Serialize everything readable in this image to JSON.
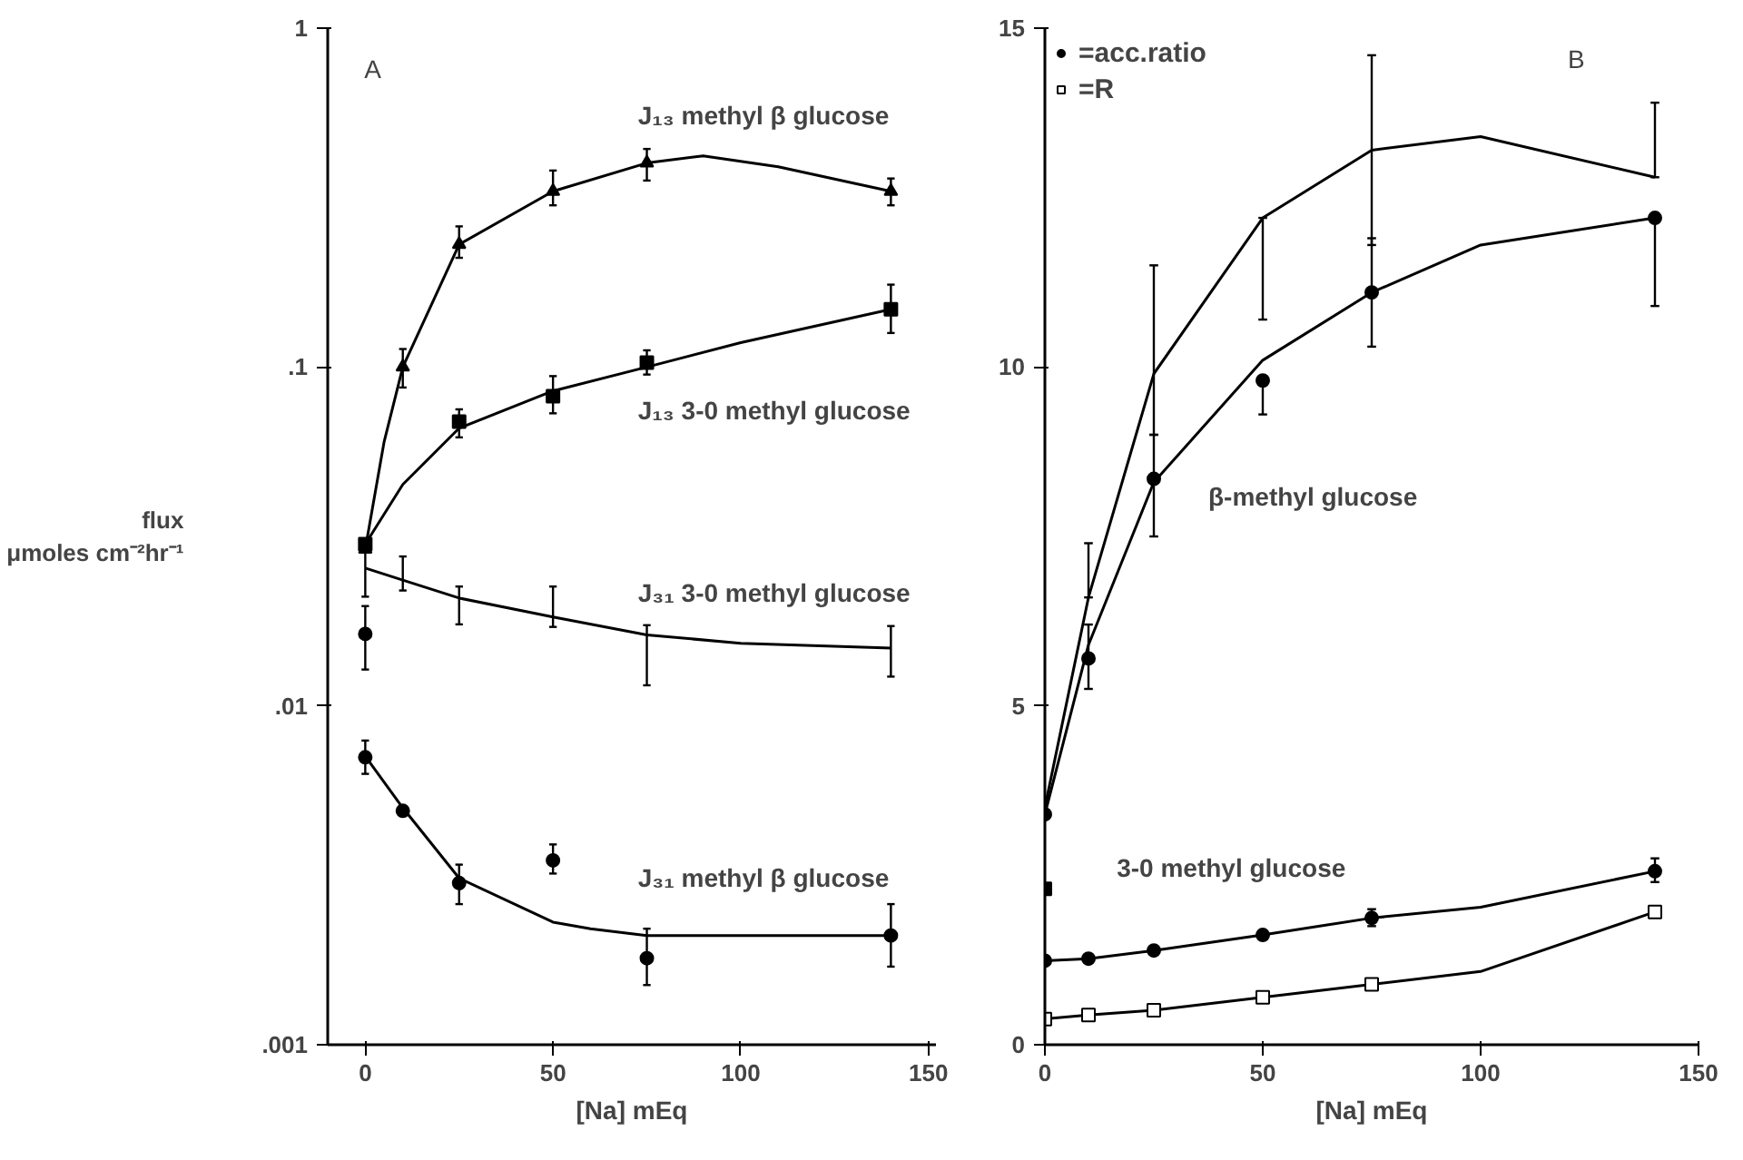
{
  "chart_data": [
    {
      "type": "scatter",
      "xlabel": "[Na] mEq",
      "ylabel": "flux\nμmoles cm⁻²hr⁻¹",
      "log": "y",
      "xlim": [
        -10,
        152
      ],
      "ylim": [
        0.001,
        1
      ],
      "xticks": [
        0,
        50,
        100,
        150
      ],
      "yticks": [
        {
          "value": 0.001,
          "label": ".001"
        },
        {
          "value": 0.01,
          "label": ".01"
        },
        {
          "value": 0.1,
          "label": ".1"
        },
        1
      ],
      "grid": false,
      "legend": false,
      "annotations": [
        "A",
        "J₁₃ methyl β glucose",
        "J₁₃ 3-0 methyl glucose",
        "J₃₁ 3-0 methyl glucose",
        "J₃₁ methyl β glucose"
      ],
      "series": [
        {
          "type": "line",
          "color": "#000000",
          "x": [
            0,
            5,
            10,
            25,
            50,
            75,
            90,
            110,
            140
          ],
          "values": [
            0.029,
            0.06,
            0.1,
            0.23,
            0.33,
            0.4,
            0.42,
            0.39,
            0.33
          ]
        },
        {
          "type": "line",
          "color": "#000000",
          "x": [
            0,
            10,
            25,
            50,
            75,
            100,
            140
          ],
          "values": [
            0.03,
            0.045,
            0.066,
            0.085,
            0.1,
            0.118,
            0.148
          ]
        },
        {
          "type": "line",
          "color": "#000000",
          "x": [
            0,
            10,
            25,
            50,
            75,
            100,
            140
          ],
          "values": [
            0.0255,
            0.0235,
            0.0208,
            0.0183,
            0.0162,
            0.0153,
            0.0148
          ],
          "errors": [
            [
              0.021,
              0.031
            ],
            [
              0.0219,
              0.0276
            ],
            [
              0.0174,
              0.0225
            ],
            [
              0.0171,
              0.0225
            ],
            [
              0.0115,
              0.0173
            ],
            null,
            [
              0.0122,
              0.0172
            ]
          ]
        },
        {
          "type": "line",
          "color": "#000000",
          "x": [
            0,
            10,
            25,
            50,
            60,
            75,
            100,
            140
          ],
          "values": [
            0.0071,
            0.005,
            0.0031,
            0.0023,
            0.0022,
            0.0021,
            0.0021,
            0.0021
          ]
        },
        {
          "marker": "triangle",
          "color": "#000000",
          "x": [
            0,
            10,
            25,
            50,
            75,
            140
          ],
          "values": [
            0.029,
            0.1,
            0.23,
            0.33,
            0.4,
            0.33
          ],
          "errors": [
            null,
            [
              0.087,
              0.113
            ],
            [
              0.21,
              0.26
            ],
            [
              0.3,
              0.38
            ],
            [
              0.355,
              0.44
            ],
            [
              0.3,
              0.36
            ]
          ]
        },
        {
          "marker": "square",
          "color": "#000000",
          "x": [
            0,
            25,
            50,
            75,
            140
          ],
          "values": [
            0.03,
            0.069,
            0.082,
            0.103,
            0.148
          ],
          "errors": [
            null,
            [
              0.062,
              0.075
            ],
            [
              0.073,
              0.094
            ],
            [
              0.095,
              0.112
            ],
            [
              0.126,
              0.175
            ]
          ]
        },
        {
          "marker": "circle",
          "color": "#000000",
          "x": [
            0
          ],
          "values": [
            0.0163
          ],
          "errors": [
            [
              0.0128,
              0.0197
            ]
          ]
        },
        {
          "marker": "circle",
          "color": "#000000",
          "x": [
            0,
            10,
            25,
            50,
            75,
            140
          ],
          "values": [
            0.00705,
            0.0049,
            0.003,
            0.0035,
            0.0018,
            0.0021
          ],
          "errors": [
            [
              0.0063,
              0.0079
            ],
            null,
            [
              0.0026,
              0.0034
            ],
            [
              0.0032,
              0.0039
            ],
            [
              0.0015,
              0.0022
            ],
            [
              0.0017,
              0.0026
            ]
          ]
        }
      ]
    },
    {
      "type": "scatter",
      "xlabel": "[Na] mEq",
      "xlim": [
        0,
        150
      ],
      "ylim": [
        0,
        15
      ],
      "xticks": [
        0,
        50,
        100,
        150
      ],
      "yticks": [
        0,
        5,
        10,
        15
      ],
      "grid": false,
      "legend": "top left",
      "annotations": [
        "B",
        "β-methyl glucose",
        "3-0 methyl glucose"
      ],
      "series": [
        {
          "type": "line",
          "color": "#000000",
          "x": [
            0,
            10,
            25,
            50,
            75,
            100,
            140
          ],
          "values": [
            3.5,
            6.6,
            9.9,
            12.2,
            13.2,
            13.4,
            12.8
          ],
          "errors": [
            null,
            [
              6.6,
              7.4
            ],
            [
              9.0,
              11.5
            ],
            [
              10.7,
              12.2
            ],
            [
              11.8,
              14.6
            ],
            null,
            [
              12.8,
              13.9
            ]
          ]
        },
        {
          "type": "line",
          "color": "#000000",
          "x": [
            0,
            10,
            25,
            50,
            75,
            100,
            140
          ],
          "values": [
            3.4,
            5.9,
            8.3,
            10.1,
            11.1,
            11.8,
            12.2
          ]
        },
        {
          "type": "line",
          "color": "#000000",
          "x": [
            0,
            10,
            25,
            50,
            75,
            100,
            140
          ],
          "values": [
            1.24,
            1.27,
            1.39,
            1.62,
            1.87,
            2.03,
            2.56
          ]
        },
        {
          "type": "line",
          "color": "#000000",
          "x": [
            0,
            10,
            25,
            50,
            75,
            100,
            140
          ],
          "values": [
            0.38,
            0.44,
            0.51,
            0.7,
            0.89,
            1.08,
            1.96
          ]
        },
        {
          "marker": "circle",
          "color": "#000000",
          "x": [
            0,
            10,
            25,
            50,
            75,
            140
          ],
          "values": [
            3.4,
            5.7,
            8.35,
            9.8,
            11.1,
            12.2
          ],
          "errors": [
            null,
            [
              5.25,
              6.2
            ],
            [
              7.5,
              9.0
            ],
            [
              9.3,
              9.8
            ],
            [
              10.3,
              11.9
            ],
            [
              10.9,
              12.2
            ]
          ]
        },
        {
          "marker": "circle",
          "color": "#000000",
          "name": "=acc.ratio",
          "x": [
            0,
            10,
            25,
            50,
            75,
            140
          ],
          "values": [
            1.24,
            1.27,
            1.39,
            1.62,
            1.87,
            2.56
          ],
          "errors": [
            null,
            null,
            null,
            null,
            [
              1.75,
              2.0
            ],
            [
              2.4,
              2.75
            ]
          ]
        },
        {
          "marker": "square",
          "color": "#000000",
          "x": [
            0
          ],
          "values": [
            2.3
          ]
        },
        {
          "marker": "square",
          "color": "#ffffff",
          "name": "=R",
          "x": [
            0,
            10,
            25,
            50,
            75,
            140
          ],
          "values": [
            0.38,
            0.44,
            0.51,
            0.7,
            0.89,
            1.96
          ]
        }
      ]
    }
  ]
}
